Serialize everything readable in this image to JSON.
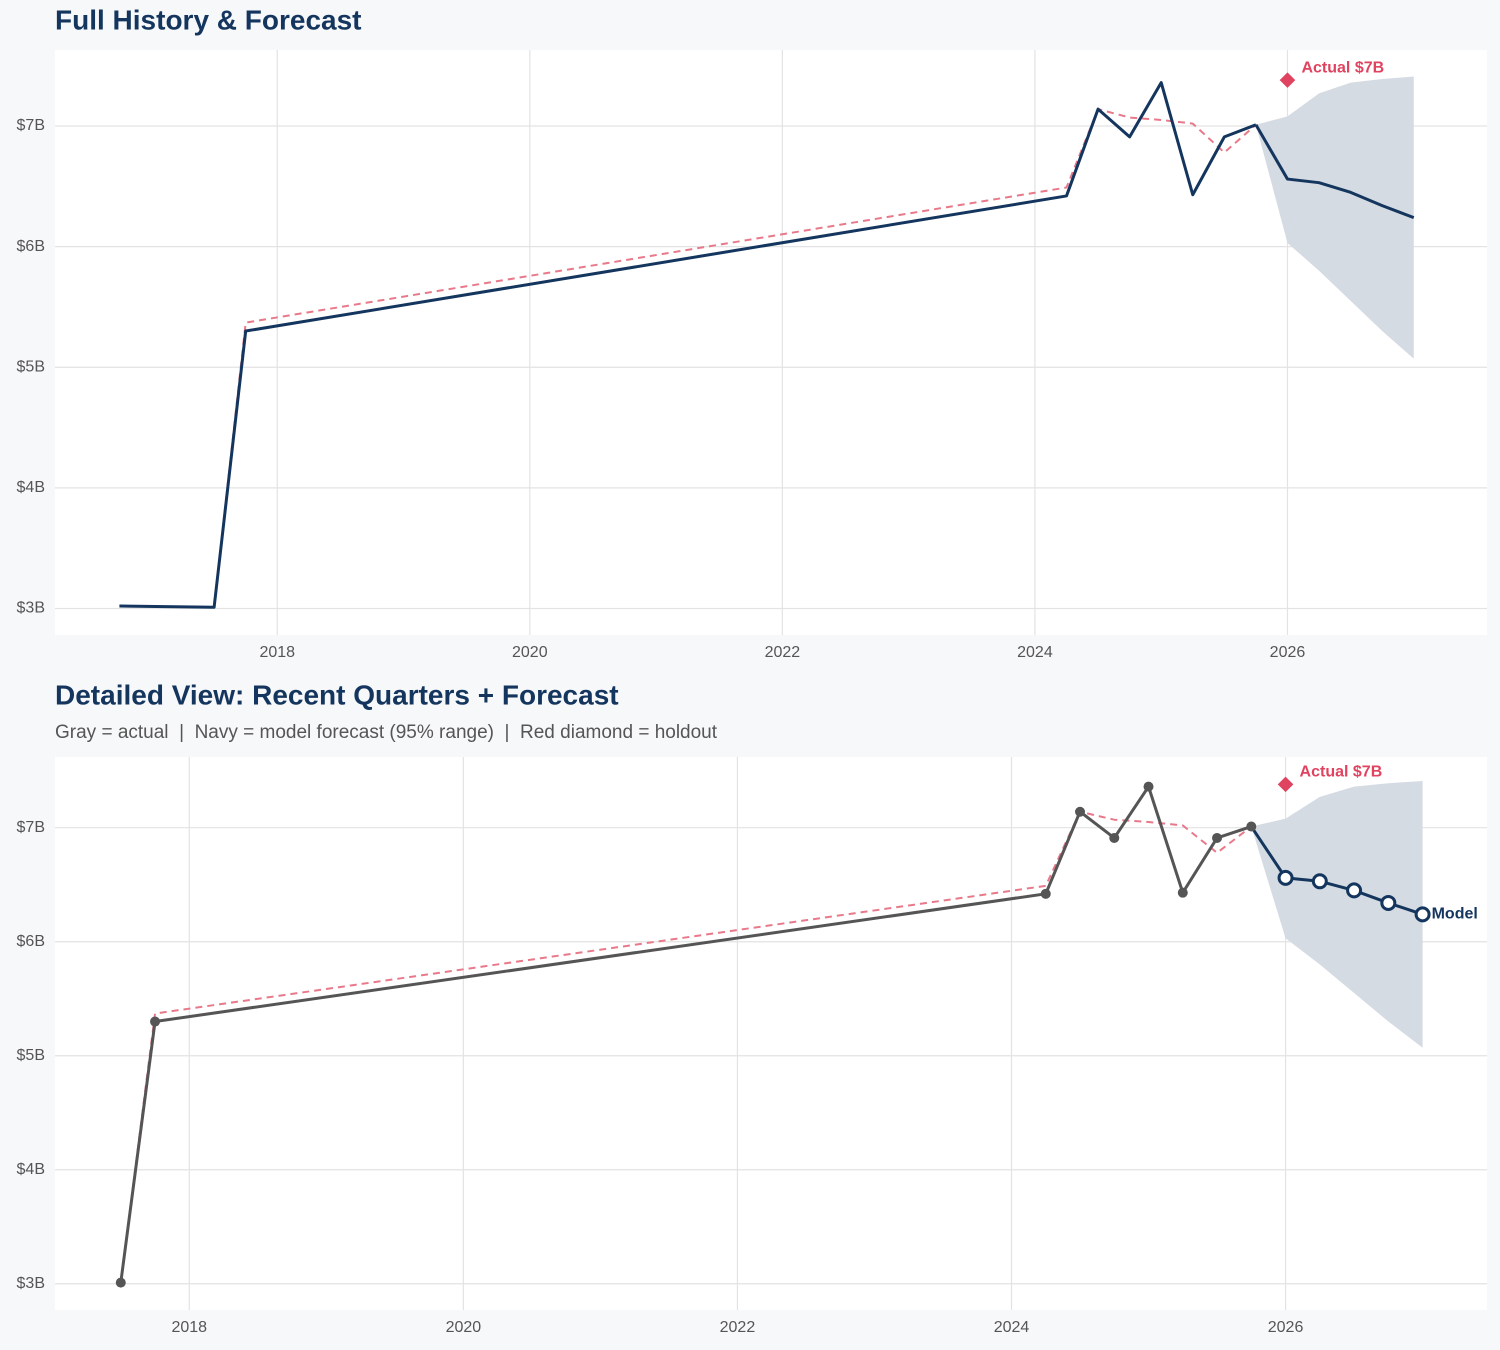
{
  "chart_data": [
    {
      "type": "line",
      "title": "Full History & Forecast",
      "xlim": [
        2016.24,
        2027.58
      ],
      "ylim": [
        2.78,
        7.63
      ],
      "xticks": [
        2018,
        2020,
        2022,
        2024,
        2026
      ],
      "yticks": [
        {
          "value": 3,
          "label": "$3B"
        },
        {
          "value": 4,
          "label": "$4B"
        },
        {
          "value": 5,
          "label": "$5B"
        },
        {
          "value": 6,
          "label": "$6B"
        },
        {
          "value": 7,
          "label": "$7B"
        }
      ],
      "grid": true,
      "band": {
        "x": [
          2025.75,
          2026.0,
          2026.25,
          2026.5,
          2026.75,
          2027.0
        ],
        "lower": [
          7.01,
          6.03,
          5.8,
          5.55,
          5.3,
          5.07
        ],
        "upper": [
          7.01,
          7.08,
          7.27,
          7.36,
          7.39,
          7.41
        ],
        "color": "#d5dbe3"
      },
      "series": [
        {
          "color": "#e8798a",
          "dash": true,
          "x": [
            2017.5,
            2017.75,
            2024.25,
            2024.5,
            2024.75,
            2025.0,
            2025.25,
            2025.5,
            2025.75
          ],
          "values": [
            3.01,
            5.37,
            6.49,
            7.14,
            7.07,
            7.05,
            7.02,
            6.78,
            7.01
          ]
        },
        {
          "color": "#14365e",
          "x": [
            2016.75,
            2017.5,
            2017.75,
            2024.25,
            2024.5,
            2024.75,
            2025.0,
            2025.25,
            2025.5,
            2025.75
          ],
          "values": [
            3.02,
            3.01,
            5.3,
            6.42,
            7.14,
            6.91,
            7.36,
            6.43,
            6.91,
            7.01
          ]
        },
        {
          "color": "#14365e",
          "x": [
            2025.75,
            2026.0,
            2026.25,
            2026.5,
            2026.75,
            2027.0
          ],
          "values": [
            7.01,
            6.56,
            6.53,
            6.45,
            6.34,
            6.24
          ]
        },
        {
          "color": "#e0435f",
          "marker": "diamond",
          "x": [
            2026.0
          ],
          "values": [
            7.38
          ],
          "value_labels": [
            "Actual $7B"
          ]
        }
      ]
    },
    {
      "type": "line",
      "title": "Detailed View: Recent Quarters + Forecast",
      "subtitle": "Gray = actual  |  Navy = model forecast (95% range)  |  Red diamond = holdout",
      "xlim": [
        2017.02,
        2027.47
      ],
      "ylim": [
        2.77,
        7.62
      ],
      "xticks": [
        2018,
        2020,
        2022,
        2024,
        2026
      ],
      "yticks": [
        {
          "value": 3,
          "label": "$3B"
        },
        {
          "value": 4,
          "label": "$4B"
        },
        {
          "value": 5,
          "label": "$5B"
        },
        {
          "value": 6,
          "label": "$6B"
        },
        {
          "value": 7,
          "label": "$7B"
        }
      ],
      "grid": true,
      "band": {
        "x": [
          2025.75,
          2026.0,
          2026.25,
          2026.5,
          2026.75,
          2027.0
        ],
        "lower": [
          7.01,
          6.03,
          5.8,
          5.55,
          5.3,
          5.07
        ],
        "upper": [
          7.01,
          7.08,
          7.27,
          7.36,
          7.39,
          7.41
        ],
        "color": "#d5dbe3"
      },
      "series": [
        {
          "color": "#e8798a",
          "dash": true,
          "x": [
            2017.5,
            2017.75,
            2024.25,
            2024.5,
            2024.75,
            2025.0,
            2025.25,
            2025.5,
            2025.75
          ],
          "values": [
            3.01,
            5.37,
            6.49,
            7.14,
            7.07,
            7.05,
            7.02,
            6.78,
            7.01
          ]
        },
        {
          "color": "#555555",
          "marker": "dot",
          "x": [
            2017.5,
            2017.75,
            2024.25,
            2024.5,
            2024.75,
            2025.0,
            2025.25,
            2025.5,
            2025.75
          ],
          "values": [
            3.01,
            5.3,
            6.42,
            7.14,
            6.91,
            7.36,
            6.43,
            6.91,
            7.01
          ]
        },
        {
          "name": "Model",
          "color": "#14365e",
          "marker": "ring",
          "x": [
            2025.75,
            2026.0,
            2026.25,
            2026.5,
            2026.75,
            2027.0
          ],
          "values": [
            7.01,
            6.56,
            6.53,
            6.45,
            6.34,
            6.24
          ]
        },
        {
          "color": "#e0435f",
          "marker": "diamond",
          "x": [
            2026.0
          ],
          "values": [
            7.38
          ],
          "value_labels": [
            "Actual $7B"
          ]
        }
      ]
    }
  ]
}
